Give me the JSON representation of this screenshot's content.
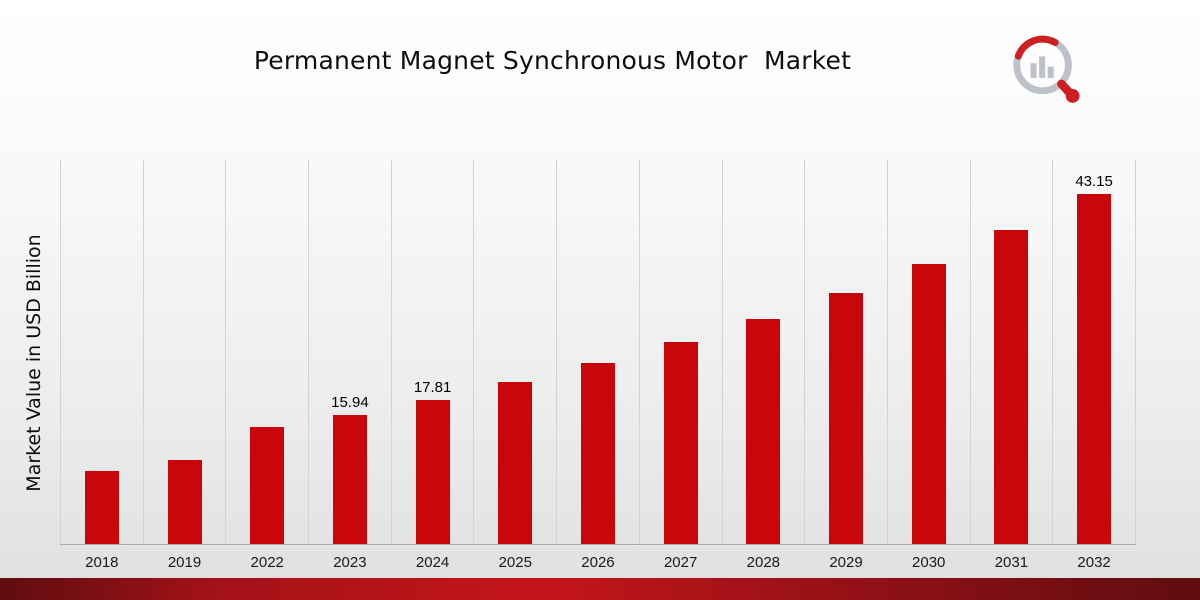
{
  "page": {
    "title": "Permanent Magnet Synchronous Motor  Market"
  },
  "chart_data": {
    "type": "bar",
    "title": "Permanent Magnet Synchronous Motor  Market",
    "ylabel": "Market Value in USD Billion",
    "xlabel": "",
    "ylim": [
      0,
      47.5
    ],
    "grid": "vertical-gridlines",
    "legend": "none",
    "bar_color": "#c9070a",
    "categories": [
      "2018",
      "2019",
      "2022",
      "2023",
      "2024",
      "2025",
      "2026",
      "2027",
      "2028",
      "2029",
      "2030",
      "2031",
      "2032"
    ],
    "values": [
      9.0,
      10.4,
      14.5,
      15.94,
      17.81,
      20.0,
      22.3,
      24.9,
      27.8,
      31.0,
      34.6,
      38.7,
      43.15
    ],
    "value_labels": [
      "",
      "",
      "",
      "15.94",
      "17.81",
      "",
      "",
      "",
      "",
      "",
      "",
      "",
      "43.15"
    ]
  },
  "branding": {
    "logo_name": "market-research-magnifier-logo",
    "logo_gray": "#b7bcc3",
    "logo_red": "#c9070a"
  },
  "colors": {
    "bar_red": "#c9070a",
    "gridline": "#d3d3d3",
    "axis_line": "#a9a9a9",
    "footer_stripe": "#c4151b"
  }
}
